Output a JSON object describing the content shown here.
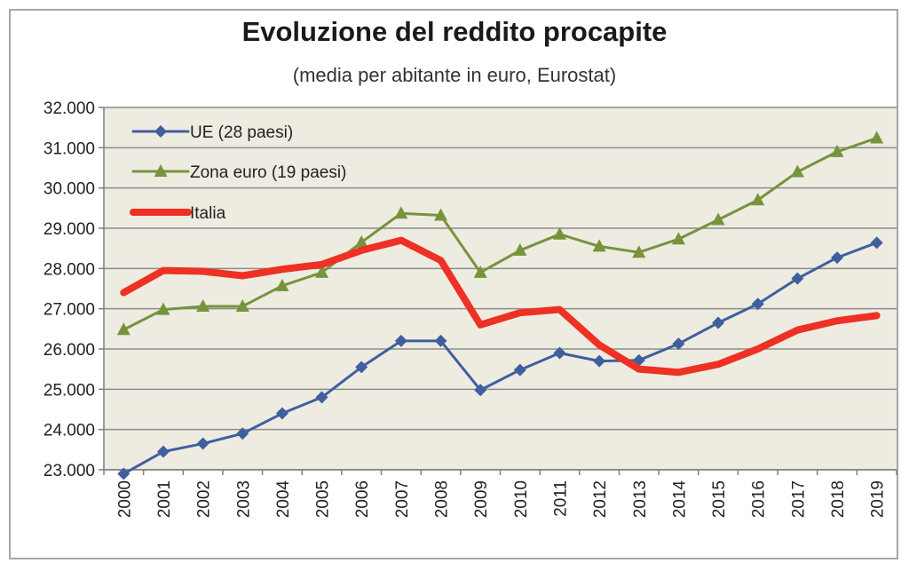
{
  "chart_data": {
    "type": "line",
    "title": "Evoluzione del reddito procapite",
    "subtitle": "(media per abitante in euro, Eurostat)",
    "x": [
      "2000",
      "2001",
      "2002",
      "2003",
      "2004",
      "2005",
      "2006",
      "2007",
      "2008",
      "2009",
      "2010",
      "2011",
      "2012",
      "2013",
      "2014",
      "2015",
      "2016",
      "2017",
      "2018",
      "2019"
    ],
    "ylim": [
      23000,
      32000
    ],
    "yticks": [
      23000,
      24000,
      25000,
      26000,
      27000,
      28000,
      29000,
      30000,
      31000,
      32000
    ],
    "ytick_labels": [
      "23.000",
      "24.000",
      "25.000",
      "26.000",
      "27.000",
      "28.000",
      "29.000",
      "30.000",
      "31.000",
      "32.000"
    ],
    "grid": true,
    "legend_position": "top-left",
    "series": [
      {
        "name": "UE (28 paesi)",
        "color": "#3f5f9f",
        "marker": "diamond",
        "values": [
          22900,
          23450,
          23650,
          23900,
          24400,
          24800,
          25550,
          26200,
          26200,
          24980,
          25480,
          25900,
          25700,
          25720,
          26130,
          26650,
          27120,
          27750,
          28270,
          28640
        ]
      },
      {
        "name": "Zona euro (19 paesi)",
        "color": "#77933c",
        "marker": "triangle",
        "values": [
          26480,
          26980,
          27060,
          27060,
          27570,
          27900,
          28650,
          29370,
          29320,
          27900,
          28450,
          28850,
          28550,
          28400,
          28730,
          29210,
          29700,
          30400,
          30900,
          31240
        ]
      },
      {
        "name": "Italia",
        "color": "#ee3124",
        "marker": "none",
        "values": [
          27400,
          27950,
          27930,
          27820,
          27980,
          28100,
          28450,
          28700,
          28200,
          26600,
          26900,
          26980,
          26100,
          25500,
          25420,
          25620,
          26000,
          26470,
          26700,
          26830
        ]
      }
    ]
  }
}
